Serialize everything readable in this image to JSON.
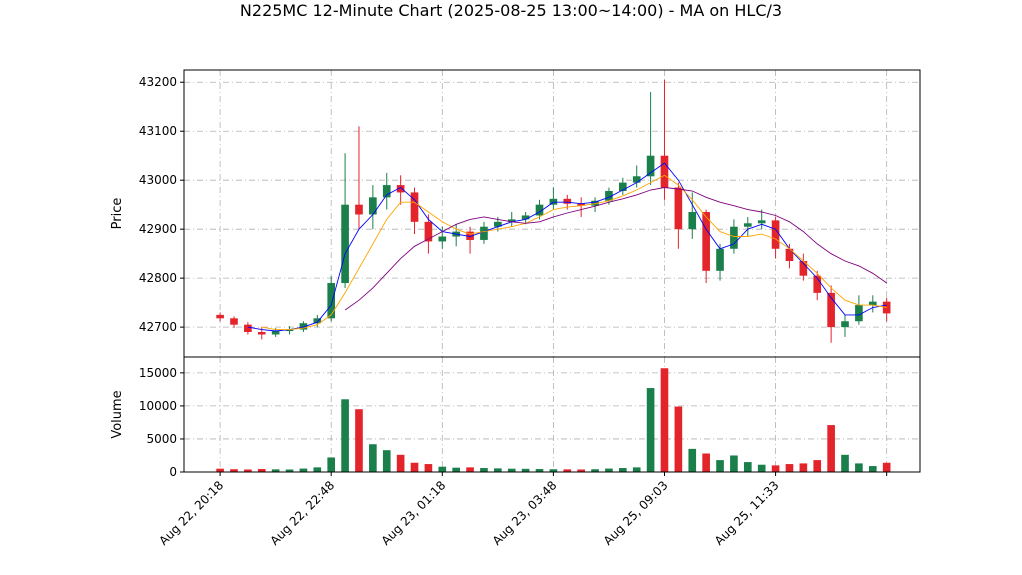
{
  "chart_data": [
    {
      "type": "candlestick",
      "title": "N225MC 12-Minute Chart (2025-08-25 13:00~14:00) - MA on HLC/3",
      "ylabel": "Price",
      "x": [
        0,
        1,
        2,
        3,
        4,
        5,
        6,
        7,
        8,
        9,
        10,
        11,
        12,
        13,
        14,
        15,
        16,
        17,
        18,
        19,
        20,
        21,
        22,
        23,
        24,
        25,
        26,
        27,
        28,
        29,
        30,
        31,
        32,
        33,
        34,
        35,
        36,
        37,
        38,
        39,
        40,
        41,
        42,
        43,
        44,
        45,
        46,
        47,
        48
      ],
      "open": [
        42725,
        42718,
        42705,
        42690,
        42685,
        42692,
        42695,
        42708,
        42718,
        42790,
        42950,
        42930,
        42965,
        42990,
        42975,
        42915,
        42875,
        42885,
        42895,
        42878,
        42905,
        42915,
        42920,
        42928,
        42950,
        42962,
        42952,
        42948,
        42958,
        42978,
        42995,
        43008,
        43050,
        42985,
        42900,
        42935,
        42815,
        42860,
        42905,
        42912,
        42918,
        42860,
        42835,
        42805,
        42770,
        42700,
        42712,
        42745,
        42752
      ],
      "high": [
        42730,
        42722,
        42710,
        42700,
        42698,
        42702,
        42712,
        42725,
        42805,
        43055,
        43110,
        42990,
        43015,
        43010,
        42985,
        42930,
        42905,
        42910,
        42905,
        42915,
        42925,
        42935,
        42935,
        42960,
        42985,
        42970,
        42965,
        42965,
        42985,
        43005,
        43030,
        43180,
        43205,
        42995,
        42975,
        42940,
        42870,
        42920,
        42925,
        42940,
        42925,
        42870,
        42850,
        42815,
        42785,
        42725,
        42765,
        42765,
        42760
      ],
      "low": [
        42712,
        42698,
        42685,
        42675,
        42680,
        42685,
        42690,
        42700,
        42712,
        42780,
        42900,
        42900,
        42940,
        42950,
        42890,
        42850,
        42860,
        42865,
        42850,
        42870,
        42895,
        42905,
        42910,
        42920,
        42940,
        42940,
        42925,
        42935,
        42950,
        42970,
        42985,
        42990,
        42960,
        42860,
        42880,
        42790,
        42795,
        42850,
        42885,
        42900,
        42840,
        42820,
        42795,
        42755,
        42668,
        42680,
        42705,
        42730,
        42712
      ],
      "close": [
        42718,
        42705,
        42690,
        42685,
        42692,
        42695,
        42708,
        42718,
        42790,
        42950,
        42930,
        42965,
        42990,
        42975,
        42915,
        42875,
        42885,
        42895,
        42878,
        42905,
        42915,
        42920,
        42928,
        42950,
        42962,
        42952,
        42948,
        42958,
        42978,
        42995,
        43008,
        43050,
        42985,
        42900,
        42935,
        42815,
        42860,
        42905,
        42912,
        42918,
        42860,
        42835,
        42805,
        42770,
        42700,
        42712,
        42745,
        42752,
        42728
      ],
      "up_color": "#1a7f4b",
      "down_color": "#e3242b",
      "series": [
        {
          "color": "#0000ff",
          "values": [
            null,
            null,
            42700,
            42695,
            42692,
            42695,
            42700,
            42710,
            42745,
            42850,
            42900,
            42930,
            42970,
            42985,
            42960,
            42920,
            42895,
            42890,
            42885,
            42895,
            42905,
            42915,
            42920,
            42935,
            42955,
            42955,
            42952,
            42955,
            42965,
            42980,
            42995,
            43015,
            43035,
            43000,
            42950,
            42900,
            42860,
            42870,
            42900,
            42910,
            42900,
            42860,
            42830,
            42800,
            42760,
            42725,
            42725,
            42740,
            42745
          ]
        },
        {
          "color": "#ffa500",
          "values": [
            null,
            null,
            null,
            42700,
            42695,
            42695,
            42698,
            42705,
            42725,
            42770,
            42820,
            42870,
            42920,
            42955,
            42955,
            42935,
            42915,
            42900,
            42890,
            42895,
            42900,
            42905,
            42912,
            42925,
            42940,
            42945,
            42948,
            42952,
            42958,
            42968,
            42980,
            42995,
            43010,
            42990,
            42960,
            42925,
            42895,
            42885,
            42885,
            42890,
            42880,
            42860,
            42835,
            42810,
            42780,
            42755,
            42745,
            42745,
            42740
          ]
        },
        {
          "color": "#800080",
          "values": [
            null,
            null,
            null,
            null,
            null,
            null,
            null,
            null,
            null,
            42735,
            42755,
            42780,
            42810,
            42840,
            42865,
            42880,
            42895,
            42910,
            42920,
            42925,
            42920,
            42915,
            42912,
            42915,
            42925,
            42933,
            42940,
            42947,
            42955,
            42962,
            42970,
            42980,
            42985,
            42982,
            42978,
            42965,
            42955,
            42948,
            42940,
            42935,
            42928,
            42915,
            42895,
            42870,
            42850,
            42835,
            42825,
            42810,
            42790
          ]
        }
      ],
      "xlim": [
        -2.6,
        50.4
      ],
      "ylim": [
        42639,
        43225
      ],
      "yticks": [
        42700,
        42800,
        42900,
        43000,
        43100,
        43200
      ],
      "grid": true
    },
    {
      "type": "bar",
      "ylabel": "Volume",
      "x": [
        0,
        1,
        2,
        3,
        4,
        5,
        6,
        7,
        8,
        9,
        10,
        11,
        12,
        13,
        14,
        15,
        16,
        17,
        18,
        19,
        20,
        21,
        22,
        23,
        24,
        25,
        26,
        27,
        28,
        29,
        30,
        31,
        32,
        33,
        34,
        35,
        36,
        37,
        38,
        39,
        40,
        41,
        42,
        43,
        44,
        45,
        46,
        47,
        48
      ],
      "values": [
        500,
        420,
        380,
        450,
        400,
        380,
        520,
        700,
        2200,
        11000,
        9500,
        4200,
        3300,
        2600,
        1400,
        1200,
        800,
        650,
        700,
        600,
        550,
        500,
        480,
        450,
        420,
        400,
        380,
        420,
        520,
        600,
        700,
        12700,
        15700,
        9900,
        3500,
        2800,
        1800,
        2500,
        1500,
        1100,
        1000,
        1200,
        1300,
        1800,
        7100,
        2600,
        1300,
        900,
        1400
      ],
      "xlim": [
        -2.6,
        50.4
      ],
      "ylim": [
        0,
        17400
      ],
      "yticks": [
        0,
        5000,
        10000,
        15000
      ],
      "xticks": [
        {
          "value": 0,
          "label": "Aug 22, 20:18"
        },
        {
          "value": 8,
          "label": "Aug 22, 22:48"
        },
        {
          "value": 16,
          "label": "Aug 23, 01:18"
        },
        {
          "value": 24,
          "label": "Aug 23, 03:48"
        },
        {
          "value": 32,
          "label": "Aug 25, 09:03"
        },
        {
          "value": 40,
          "label": "Aug 25, 11:33"
        },
        {
          "value": 48,
          "label": null
        }
      ],
      "grid": true
    }
  ]
}
